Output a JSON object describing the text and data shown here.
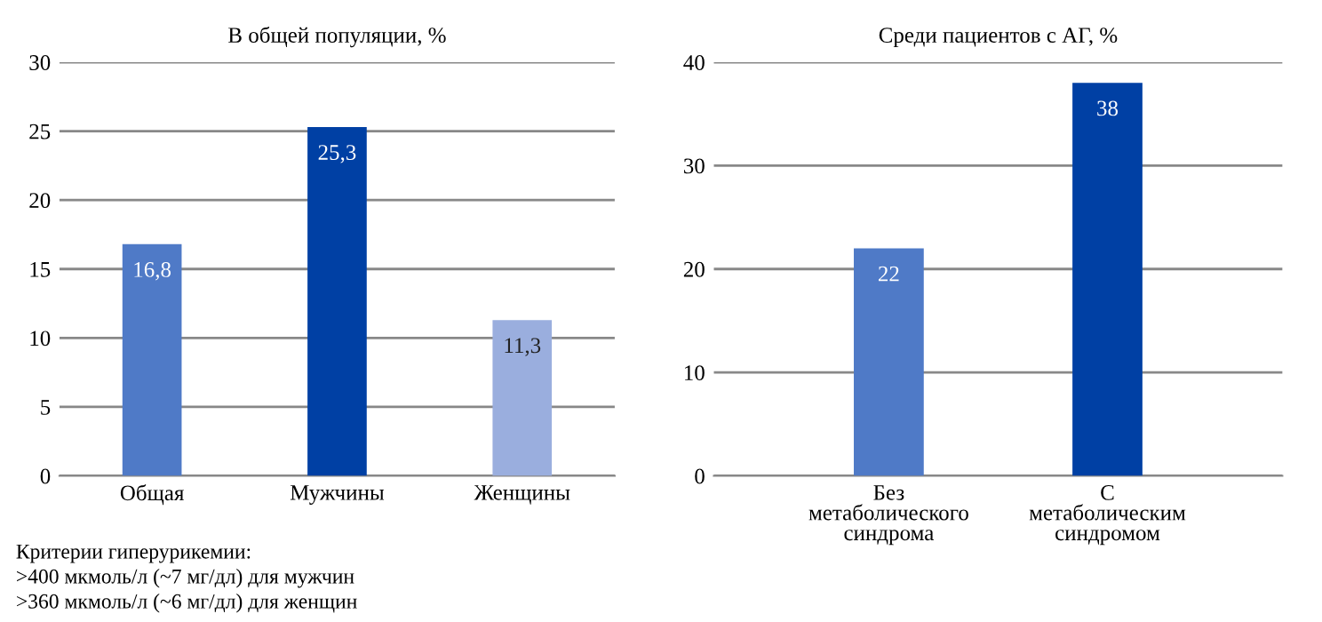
{
  "chart_data": [
    {
      "type": "bar",
      "title": "В общей популяции, %",
      "categories": [
        "Общая",
        "Мужчины",
        "Женщины"
      ],
      "values": [
        16.8,
        25.3,
        11.3
      ],
      "colors": [
        "#4f7ac7",
        "#0040a4",
        "#9aaede"
      ],
      "value_labels": [
        "16,8",
        "25,3",
        "11,3"
      ],
      "ylim": [
        0,
        30
      ],
      "yticks": [
        0,
        5,
        10,
        15,
        20,
        25,
        30
      ],
      "grid": "y",
      "annotations": [
        "Критерии гиперурикемии:",
        ">400 мкмоль/л (~7 мг/дл) для мужчин",
        ">360 мкмоль/л (~6 мг/дл) для женщин"
      ]
    },
    {
      "type": "bar",
      "title": "Среди пациентов с АГ, %",
      "categories": [
        "Без\nметаболического\nсиндрома",
        "С\nметаболическим\nсиндромом"
      ],
      "values": [
        22,
        38
      ],
      "colors": [
        "#4f7ac7",
        "#0040a4"
      ],
      "data_labels": true,
      "ylim": [
        0,
        40
      ],
      "yticks": [
        0,
        10,
        20,
        30,
        40
      ],
      "grid": "y"
    }
  ]
}
